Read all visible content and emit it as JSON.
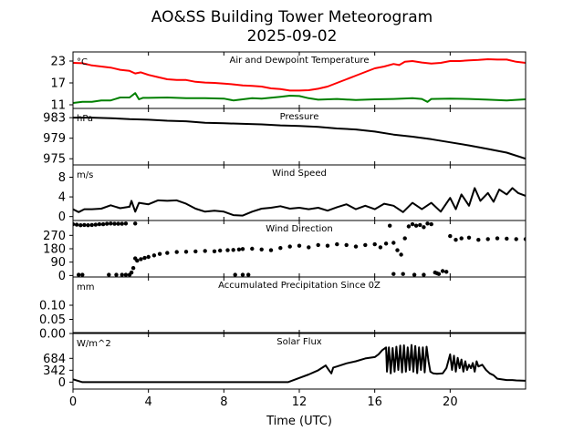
{
  "chart_data": {
    "type": "line",
    "title": "AO&SS Building Tower Meteorogram",
    "subtitle": "2025-09-02",
    "xlabel": "Time (UTC)",
    "xlim": [
      0,
      24
    ],
    "xticks": [
      0,
      4,
      8,
      12,
      16,
      20
    ],
    "xtick_labels": [
      "0",
      "4",
      "8",
      "12",
      "16",
      "20"
    ],
    "grid": false,
    "panels": [
      {
        "id": "temperature",
        "title": "Air and Dewpoint Temperature",
        "unit": "°C",
        "ylim": [
          10,
          25.5
        ],
        "yticks": [
          23,
          17,
          11
        ],
        "ytick_labels": [
          "23",
          "17",
          "11"
        ],
        "series": [
          {
            "name": "Air Temperature",
            "color": "#ff0000",
            "style": "line",
            "x": [
              0,
              0.5,
              1,
              1.5,
              2,
              2.5,
              3,
              3.3,
              3.6,
              4,
              4.5,
              5,
              5.5,
              6,
              6.5,
              7,
              7.5,
              8,
              8.5,
              9,
              9.5,
              10,
              10.5,
              11,
              11.5,
              12,
              12.5,
              13,
              13.5,
              14,
              14.5,
              15,
              15.5,
              16,
              16.5,
              17,
              17.3,
              17.6,
              18,
              18.5,
              19,
              19.5,
              20,
              20.5,
              21,
              21.5,
              22,
              22.5,
              23,
              23.5,
              24
            ],
            "values": [
              22.5,
              22.4,
              21.8,
              21.5,
              21.2,
              20.6,
              20.3,
              19.6,
              19.9,
              19.2,
              18.6,
              18.0,
              17.8,
              17.8,
              17.3,
              17.1,
              17.0,
              16.8,
              16.6,
              16.3,
              16.2,
              16.0,
              15.5,
              15.3,
              14.9,
              14.9,
              15.0,
              15.4,
              16.0,
              17.0,
              18.0,
              19.0,
              20.0,
              21.0,
              21.5,
              22.2,
              21.9,
              22.8,
              23.0,
              22.6,
              22.3,
              22.5,
              23.0,
              23.0,
              23.2,
              23.3,
              23.5,
              23.4,
              23.4,
              22.8,
              22.5
            ]
          },
          {
            "name": "Dewpoint Temperature",
            "color": "#008000",
            "style": "line",
            "x": [
              0,
              0.5,
              1,
              1.5,
              2,
              2.5,
              3,
              3.3,
              3.5,
              3.7,
              4,
              5,
              6,
              7,
              8,
              8.5,
              9,
              9.5,
              10,
              11,
              11.5,
              12,
              12.5,
              13,
              14,
              15,
              16,
              17,
              18,
              18.5,
              18.8,
              19,
              20,
              21,
              22,
              23,
              24
            ],
            "values": [
              11.5,
              11.8,
              11.8,
              12.2,
              12.2,
              13.0,
              13.0,
              14.2,
              12.5,
              12.9,
              12.9,
              13.0,
              12.8,
              12.8,
              12.7,
              12.2,
              12.5,
              12.8,
              12.7,
              13.2,
              13.5,
              13.4,
              12.8,
              12.4,
              12.6,
              12.3,
              12.5,
              12.6,
              12.8,
              12.6,
              11.8,
              12.6,
              12.7,
              12.6,
              12.4,
              12.2,
              12.5
            ]
          }
        ]
      },
      {
        "id": "pressure",
        "title": "Pressure",
        "unit": "hPa",
        "ylim": [
          973.8,
          984.8
        ],
        "yticks": [
          983,
          979,
          975
        ],
        "ytick_labels": [
          "983",
          "979",
          "975"
        ],
        "series": [
          {
            "name": "Pressure",
            "color": "#000000",
            "style": "line",
            "x": [
              0,
              1,
              2,
              3,
              4,
              5,
              6,
              7,
              8,
              9,
              10,
              11,
              12,
              13,
              14,
              15,
              16,
              17,
              18,
              19,
              20,
              21,
              22,
              23,
              24
            ],
            "values": [
              983.0,
              983.0,
              982.9,
              982.7,
              982.6,
              982.4,
              982.3,
              982.0,
              981.9,
              981.8,
              981.7,
              981.5,
              981.4,
              981.2,
              980.9,
              980.7,
              980.3,
              979.7,
              979.3,
              978.8,
              978.2,
              977.6,
              976.9,
              976.2,
              975.0
            ]
          }
        ]
      },
      {
        "id": "wind_speed",
        "title": "Wind Speed",
        "unit": "m/s",
        "ylim": [
          -0.8,
          10.5
        ],
        "yticks": [
          8,
          4,
          0
        ],
        "ytick_labels": [
          "8",
          "4",
          "0"
        ],
        "series": [
          {
            "name": "Wind Speed",
            "color": "#000000",
            "style": "line",
            "x": [
              0,
              0.3,
              0.6,
              1,
              1.5,
              2,
              2.5,
              3,
              3.1,
              3.3,
              3.5,
              4,
              4.5,
              5,
              5.5,
              6,
              6.5,
              7,
              7.5,
              8,
              8.5,
              9,
              9.5,
              10,
              10.5,
              11,
              11.5,
              12,
              12.5,
              13,
              13.5,
              14,
              14.5,
              15,
              15.5,
              16,
              16.5,
              17,
              17.5,
              18,
              18.5,
              19,
              19.5,
              20,
              20.3,
              20.6,
              21,
              21.3,
              21.6,
              22,
              22.3,
              22.6,
              23,
              23.3,
              23.6,
              24
            ],
            "values": [
              1.5,
              0.9,
              1.5,
              1.5,
              1.6,
              2.3,
              1.7,
              2.0,
              3.2,
              1.0,
              2.8,
              2.5,
              3.3,
              3.2,
              3.3,
              2.6,
              1.6,
              1.0,
              1.2,
              1.0,
              0.3,
              0.2,
              1.0,
              1.6,
              1.8,
              2.1,
              1.6,
              1.8,
              1.5,
              1.8,
              1.2,
              1.9,
              2.5,
              1.5,
              2.2,
              1.5,
              2.6,
              2.2,
              0.9,
              2.8,
              1.5,
              2.8,
              1.0,
              3.8,
              1.5,
              4.5,
              2.2,
              5.8,
              3.2,
              4.8,
              3.0,
              5.5,
              4.5,
              5.8,
              4.8,
              4.2
            ]
          }
        ]
      },
      {
        "id": "wind_direction",
        "title": "Wind Direction",
        "unit": "",
        "ylim": [
          -10,
          370
        ],
        "yticks": [
          270,
          180,
          90,
          0
        ],
        "ytick_labels": [
          "270",
          "180",
          "90",
          "0"
        ],
        "series": [
          {
            "name": "Wind Direction",
            "color": "#000000",
            "style": "scatter",
            "x": [
              0,
              0.2,
              0.4,
              0.6,
              0.8,
              1,
              1.2,
              1.4,
              1.6,
              1.8,
              2,
              2.2,
              2.4,
              2.6,
              2.8,
              3.3,
              0.3,
              0.5,
              1.9,
              2.3,
              2.6,
              2.8,
              3.0,
              3.1,
              3.2,
              3.3,
              3.4,
              3.6,
              3.8,
              4,
              4.3,
              4.6,
              5,
              5.5,
              6,
              6.5,
              7,
              7.5,
              7.8,
              8.2,
              8.5,
              8.8,
              9,
              9.5,
              10,
              10.5,
              11,
              11.5,
              12,
              12.5,
              13,
              13.5,
              14,
              14.5,
              15,
              15.5,
              16,
              16.3,
              16.6,
              16.8,
              17,
              17.2,
              17.4,
              17.6,
              17.8,
              18,
              18.2,
              18.4,
              18.6,
              18.8,
              19,
              19.2,
              19.4,
              19.6,
              19.8,
              17.0,
              17.5,
              18.1,
              18.6,
              19.3,
              20,
              20.3,
              20.6,
              21,
              21.5,
              22,
              22.5,
              23,
              23.5,
              24,
              8.6,
              9.0,
              9.3
            ],
            "values": [
              345,
              342,
              338,
              340,
              338,
              340,
              342,
              345,
              345,
              348,
              350,
              348,
              348,
              348,
              350,
              350,
              5,
              5,
              5,
              5,
              5,
              5,
              5,
              20,
              50,
              115,
              100,
              110,
              118,
              125,
              135,
              145,
              152,
              158,
              160,
              162,
              165,
              163,
              168,
              170,
              172,
              175,
              178,
              180,
              175,
              170,
              185,
              195,
              200,
              190,
              205,
              200,
              210,
              205,
              195,
              205,
              210,
              190,
              215,
              335,
              220,
              170,
              140,
              250,
              330,
              345,
              335,
              340,
              325,
              350,
              345,
              20,
              10,
              30,
              25,
              10,
              10,
              5,
              5,
              15,
              265,
              240,
              250,
              255,
              240,
              245,
              250,
              248,
              245,
              245,
              5,
              5,
              5
            ]
          }
        ]
      },
      {
        "id": "precipitation",
        "title": "Accumulated Precipitation Since 0Z",
        "unit": "mm",
        "ylim": [
          0,
          0.2
        ],
        "yticks": [
          0.1,
          0.05,
          0.0
        ],
        "ytick_labels": [
          "0.10",
          "0.05",
          "0.00"
        ],
        "series": [
          {
            "name": "Accumulated Precipitation",
            "color": "#000000",
            "style": "line",
            "x": [
              0,
              24
            ],
            "values": [
              0.0,
              0.0
            ]
          }
        ]
      },
      {
        "id": "solar_flux",
        "title": "Solar Flux",
        "unit": "W/m^2",
        "ylim": [
          -200,
          1400
        ],
        "yticks": [
          684,
          342,
          0
        ],
        "ytick_labels": [
          "684",
          "342",
          "0"
        ],
        "series": [
          {
            "name": "Solar Flux",
            "color": "#000000",
            "style": "line",
            "x": [
              0,
              0.5,
              11.4,
              12,
              12.5,
              13,
              13.4,
              13.6,
              13.7,
              13.8,
              14,
              14.5,
              15,
              15.5,
              16,
              16.2,
              16.4,
              16.6,
              16.65,
              16.75,
              16.85,
              16.95,
              17.05,
              17.15,
              17.25,
              17.35,
              17.45,
              17.55,
              17.65,
              17.75,
              17.85,
              17.95,
              18.05,
              18.15,
              18.25,
              18.35,
              18.45,
              18.55,
              18.65,
              18.75,
              18.85,
              18.95,
              19.1,
              19.3,
              19.6,
              19.8,
              20,
              20.1,
              20.2,
              20.3,
              20.4,
              20.5,
              20.6,
              20.7,
              20.8,
              20.9,
              21.0,
              21.1,
              21.2,
              21.3,
              21.4,
              21.5,
              21.7,
              21.9,
              22.1,
              22.3,
              22.5,
              23,
              23.3,
              23.5,
              24
            ],
            "values": [
              80,
              0,
              0,
              120,
              220,
              340,
              480,
              320,
              250,
              420,
              450,
              540,
              600,
              680,
              720,
              800,
              920,
              1000,
              300,
              1000,
              250,
              980,
              300,
              1020,
              350,
              1050,
              280,
              1060,
              300,
              1000,
              350,
              1070,
              300,
              1040,
              260,
              1000,
              350,
              1000,
              280,
              1020,
              600,
              300,
              250,
              240,
              250,
              400,
              800,
              350,
              760,
              300,
              700,
              400,
              650,
              300,
              600,
              350,
              500,
              400,
              550,
              300,
              600,
              450,
              500,
              350,
              250,
              200,
              100,
              60,
              60,
              50,
              40
            ]
          }
        ]
      }
    ]
  }
}
